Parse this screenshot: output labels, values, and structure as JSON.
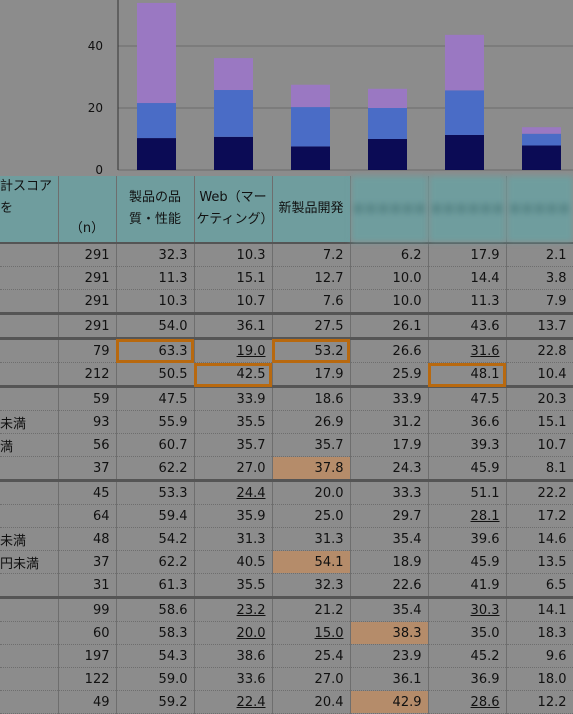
{
  "chart_data": {
    "type": "bar",
    "stacked": true,
    "y_ticks": [
      "0",
      "20",
      "40"
    ],
    "ylim": [
      0,
      55
    ],
    "categories": [
      "製品の品質・性能",
      "Web（マーケティング）",
      "新製品開発",
      "",
      "",
      ""
    ],
    "series": [
      {
        "color": "#0b0b55",
        "values": [
          10.3,
          10.7,
          7.6,
          10.0,
          11.3,
          7.9
        ]
      },
      {
        "color": "#4a6cc6",
        "values": [
          11.3,
          15.1,
          12.7,
          10.0,
          14.4,
          3.8
        ]
      },
      {
        "color": "#9a78c2",
        "values": [
          32.3,
          10.3,
          7.2,
          6.2,
          17.9,
          2.1
        ]
      }
    ]
  },
  "table": {
    "label_header": "計スコアを",
    "n_header": "（n）",
    "col_headers": [
      "製品の品質・性能",
      "Web（マーケティング）",
      "新製品開発",
      "",
      "",
      ""
    ],
    "rows": [
      {
        "label": "",
        "n": "291",
        "v": [
          "32.3",
          "10.3",
          "7.2",
          "6.2",
          "17.9",
          "2.1"
        ]
      },
      {
        "label": "",
        "n": "291",
        "v": [
          "11.3",
          "15.1",
          "12.7",
          "10.0",
          "14.4",
          "3.8"
        ]
      },
      {
        "label": "",
        "n": "291",
        "v": [
          "10.3",
          "10.7",
          "7.6",
          "10.0",
          "11.3",
          "7.9"
        ]
      },
      {
        "label": "",
        "n": "291",
        "v": [
          "54.0",
          "36.1",
          "27.5",
          "26.1",
          "43.6",
          "13.7"
        ],
        "sep": true
      },
      {
        "label": "",
        "n": "79",
        "v": [
          "63.3",
          "19.0",
          "53.2",
          "26.6",
          "31.6",
          "22.8"
        ],
        "sep": true,
        "box": [
          0,
          2
        ],
        "low": [
          1,
          4
        ]
      },
      {
        "label": "",
        "n": "212",
        "v": [
          "50.5",
          "42.5",
          "17.9",
          "25.9",
          "48.1",
          "10.4"
        ],
        "box": [
          1,
          4
        ]
      },
      {
        "label": "",
        "n": "59",
        "v": [
          "47.5",
          "33.9",
          "18.6",
          "33.9",
          "47.5",
          "20.3"
        ],
        "sep": true
      },
      {
        "label": "未満",
        "n": "93",
        "v": [
          "55.9",
          "35.5",
          "26.9",
          "31.2",
          "36.6",
          "15.1"
        ]
      },
      {
        "label": "満",
        "n": "56",
        "v": [
          "60.7",
          "35.7",
          "35.7",
          "17.9",
          "39.3",
          "10.7"
        ]
      },
      {
        "label": "",
        "n": "37",
        "v": [
          "62.2",
          "27.0",
          "37.8",
          "24.3",
          "45.9",
          "8.1"
        ],
        "fill": [
          2
        ]
      },
      {
        "label": "",
        "n": "45",
        "v": [
          "53.3",
          "24.4",
          "20.0",
          "33.3",
          "51.1",
          "22.2"
        ],
        "sep": true,
        "low": [
          1
        ]
      },
      {
        "label": "",
        "n": "64",
        "v": [
          "59.4",
          "35.9",
          "25.0",
          "29.7",
          "28.1",
          "17.2"
        ],
        "low": [
          4
        ]
      },
      {
        "label": "未満",
        "n": "48",
        "v": [
          "54.2",
          "31.3",
          "31.3",
          "35.4",
          "39.6",
          "14.6"
        ]
      },
      {
        "label": "円未満",
        "n": "37",
        "v": [
          "62.2",
          "40.5",
          "54.1",
          "18.9",
          "45.9",
          "13.5"
        ],
        "fill": [
          2
        ]
      },
      {
        "label": "",
        "n": "31",
        "v": [
          "61.3",
          "35.5",
          "32.3",
          "22.6",
          "41.9",
          "6.5"
        ]
      },
      {
        "label": "",
        "n": "99",
        "v": [
          "58.6",
          "23.2",
          "21.2",
          "35.4",
          "30.3",
          "14.1"
        ],
        "sep": true,
        "low": [
          1,
          4
        ]
      },
      {
        "label": "",
        "n": "60",
        "v": [
          "58.3",
          "20.0",
          "15.0",
          "38.3",
          "35.0",
          "18.3"
        ],
        "low": [
          1,
          2
        ],
        "fill": [
          3
        ]
      },
      {
        "label": "",
        "n": "197",
        "v": [
          "54.3",
          "38.6",
          "25.4",
          "23.9",
          "45.2",
          "9.6"
        ]
      },
      {
        "label": "",
        "n": "122",
        "v": [
          "59.0",
          "33.6",
          "27.0",
          "36.1",
          "36.9",
          "18.0"
        ]
      },
      {
        "label": "",
        "n": "49",
        "v": [
          "59.2",
          "22.4",
          "20.4",
          "42.9",
          "28.6",
          "12.2"
        ],
        "low": [
          1,
          4
        ],
        "fill": [
          3
        ]
      }
    ]
  }
}
